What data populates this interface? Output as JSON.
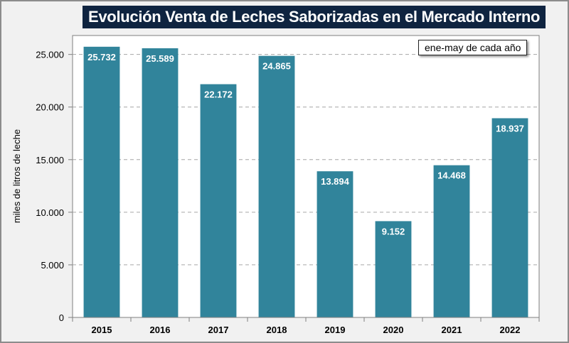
{
  "chart_data": {
    "type": "bar",
    "title": "Evolución Venta de Leches Saborizadas en el Mercado Interno",
    "annotation": "ene-may de cada año",
    "xlabel": "",
    "ylabel": "miles de litros de leche",
    "categories": [
      "2015",
      "2016",
      "2017",
      "2018",
      "2019",
      "2020",
      "2021",
      "2022"
    ],
    "values": [
      25732,
      25589,
      22172,
      24865,
      13894,
      9152,
      14468,
      18937
    ],
    "data_labels": [
      "25.732",
      "25.589",
      "22.172",
      "24.865",
      "13.894",
      "9.152",
      "14.468",
      "18.937"
    ],
    "yticks": [
      0,
      5000,
      10000,
      15000,
      20000,
      25000
    ],
    "ytick_labels": [
      "0",
      "5.000",
      "10.000",
      "15.000",
      "20.000",
      "25.000"
    ],
    "ylim": [
      0,
      26800
    ],
    "grid": "horizontal-dashed",
    "legend": "none",
    "colors": {
      "bar": "#31849b",
      "title_bg": "#0f2440",
      "grid": "#a6a6a6"
    }
  }
}
